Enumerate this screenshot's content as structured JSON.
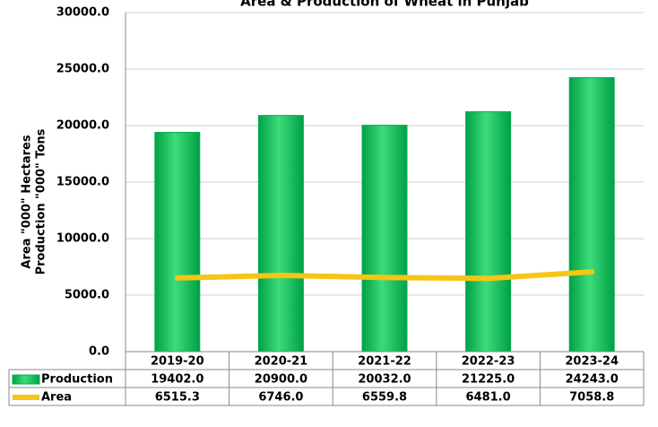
{
  "chart_data": {
    "type": "bar",
    "title": "Area & Production of Wheat in Punjab",
    "y_label": [
      "Area \"000\" Hectares",
      "Production \"000\" Tons"
    ],
    "categories": [
      "2019-20",
      "2020-21",
      "2021-22",
      "2022-23",
      "2023-24"
    ],
    "series": [
      {
        "name": "Production",
        "type": "bar",
        "color": "#00b050",
        "values": [
          19402.0,
          20900.0,
          20032.0,
          21225.0,
          24243.0
        ],
        "value_labels": [
          "19402.0",
          "20900.0",
          "20032.0",
          "21225.0",
          "24243.0"
        ]
      },
      {
        "name": "Area",
        "type": "line",
        "color": "#f5c518",
        "values": [
          6515.3,
          6746.0,
          6559.8,
          6481.0,
          7058.8
        ],
        "value_labels": [
          "6515.3",
          "6746.0",
          "6559.8",
          "6481.0",
          "7058.8"
        ]
      }
    ],
    "ylim": [
      0,
      30000
    ],
    "yticks": [
      {
        "value": 0,
        "label": "0.0"
      },
      {
        "value": 5000,
        "label": "5000.0"
      },
      {
        "value": 10000,
        "label": "10000.0"
      },
      {
        "value": 15000,
        "label": "15000.0"
      },
      {
        "value": 20000,
        "label": "20000.0"
      },
      {
        "value": 25000,
        "label": "25000.0"
      },
      {
        "value": 30000,
        "label": "30000.0"
      }
    ],
    "grid": true,
    "data_table": true
  }
}
